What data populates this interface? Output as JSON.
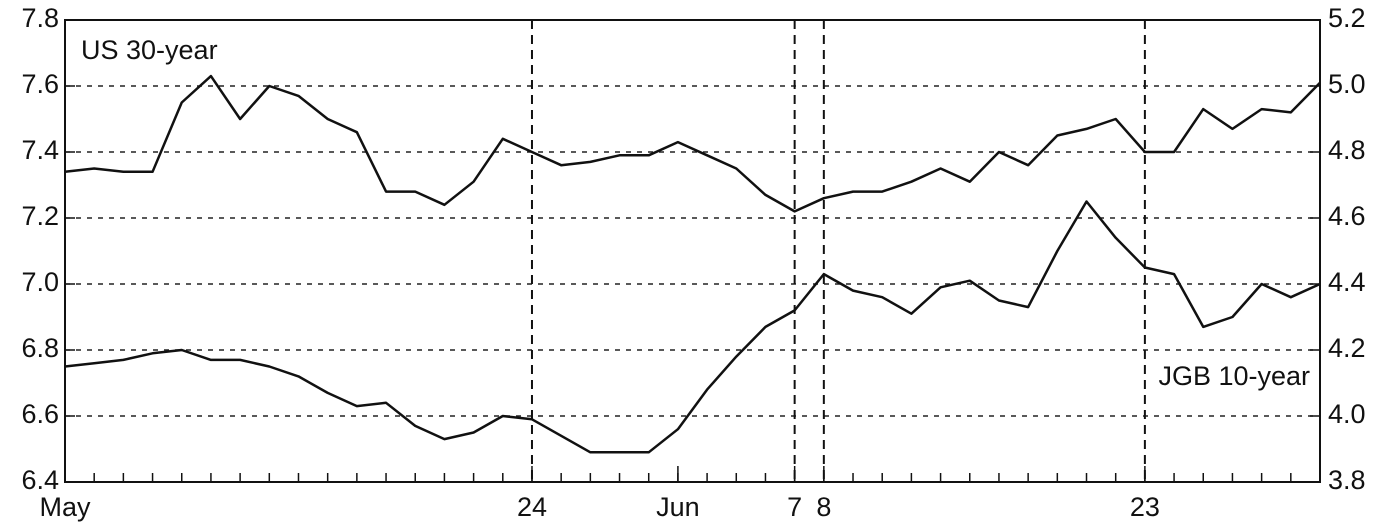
{
  "chart_data": {
    "type": "line",
    "x": [
      0,
      1,
      2,
      3,
      4,
      5,
      6,
      7,
      8,
      9,
      10,
      11,
      12,
      13,
      14,
      15,
      16,
      17,
      18,
      19,
      20,
      21,
      22,
      23,
      24,
      25,
      26,
      27,
      28,
      29,
      30,
      31,
      32,
      33,
      34,
      35,
      36,
      37,
      38,
      39,
      40,
      41,
      42,
      43
    ],
    "xlim": [
      0,
      43
    ],
    "xticks": [
      {
        "value": 0,
        "label": "May"
      },
      {
        "value": 16,
        "label": "24"
      },
      {
        "value": 21,
        "label": "Jun"
      },
      {
        "value": 25,
        "label": "7"
      },
      {
        "value": 26,
        "label": "8"
      },
      {
        "value": 37,
        "label": "23"
      }
    ],
    "vlines": [
      16,
      25,
      26,
      37
    ],
    "ylim": [
      6.4,
      7.8
    ],
    "yticks": [
      6.4,
      6.6,
      6.8,
      {
        "value": 7,
        "label": "7.0"
      },
      7.2,
      7.4,
      7.6,
      7.8
    ],
    "y2lim": [
      3.8,
      5.2
    ],
    "y2ticks": [
      3.8,
      {
        "value": 4,
        "label": "4.0"
      },
      4.2,
      4.4,
      4.6,
      4.8,
      {
        "value": 5,
        "label": "5.0"
      },
      5.2
    ],
    "grid": true,
    "series": [
      {
        "name": "US 30-year",
        "color": "#111111",
        "values": [
          7.34,
          7.35,
          7.34,
          7.34,
          7.55,
          7.63,
          7.5,
          7.6,
          7.57,
          7.5,
          7.46,
          7.28,
          7.28,
          7.24,
          7.31,
          7.44,
          7.4,
          7.36,
          7.37,
          7.39,
          7.39,
          7.43,
          7.39,
          7.35,
          7.27,
          7.22,
          7.26,
          7.28,
          7.28,
          7.31,
          7.35,
          7.31,
          7.4,
          7.36,
          7.45,
          7.47,
          7.5,
          7.4,
          7.4,
          7.53,
          7.47,
          7.53,
          7.52,
          7.61
        ]
      },
      {
        "name": "JGB 10-year",
        "color": "#111111",
        "axis": "y2",
        "values": [
          4.15,
          4.16,
          4.17,
          4.19,
          4.2,
          4.17,
          4.17,
          4.15,
          4.12,
          4.07,
          4.03,
          4.04,
          3.97,
          3.93,
          3.95,
          4.0,
          3.99,
          3.94,
          3.89,
          3.89,
          3.89,
          3.96,
          4.08,
          4.18,
          4.27,
          4.32,
          4.43,
          4.38,
          4.36,
          4.31,
          4.39,
          4.41,
          4.35,
          4.33,
          4.5,
          4.65,
          4.54,
          4.45,
          4.43,
          4.27,
          4.3,
          4.4,
          4.36,
          4.4
        ]
      }
    ]
  }
}
